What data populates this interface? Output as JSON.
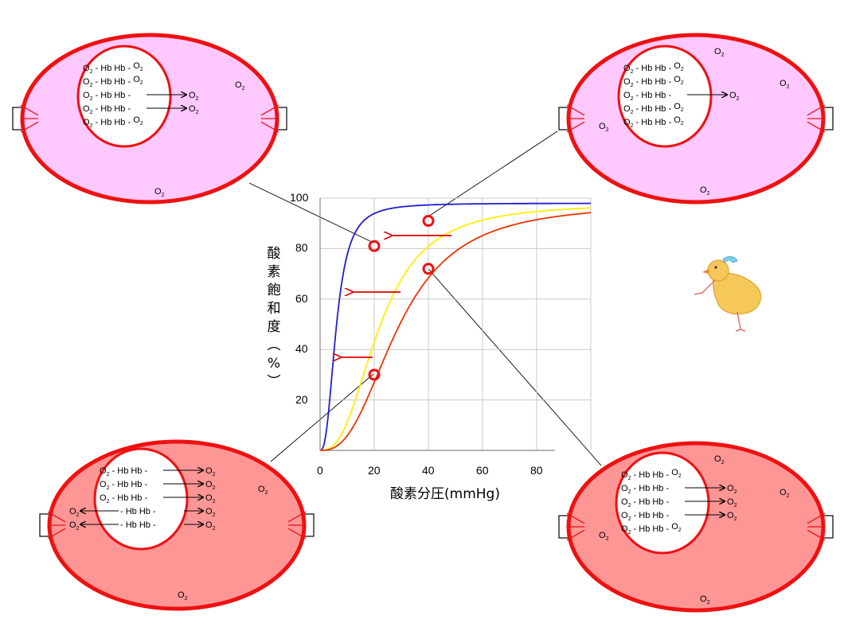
{
  "chart_data": {
    "type": "line",
    "xlabel": "酸素分圧(mmHg)",
    "ylabel": "酸素飽和度(%)",
    "xlim": [
      0,
      100
    ],
    "ylim": [
      0,
      100
    ],
    "x_ticks": [
      "0",
      "20",
      "40",
      "60",
      "80"
    ],
    "y_ticks": [
      "20",
      "40",
      "60",
      "80",
      "100"
    ],
    "grid": true,
    "series": [
      {
        "color": "#1f1fcf",
        "p50": 6,
        "hill": 2.6
      },
      {
        "color": "#ffee00",
        "p50": 22,
        "hill": 2.6
      },
      {
        "color": "#ee3300",
        "p50": 29,
        "hill": 2.6
      }
    ],
    "markers": [
      {
        "x": 20,
        "y": 81
      },
      {
        "x": 40,
        "y": 91
      },
      {
        "x": 20,
        "y": 30
      },
      {
        "x": 40,
        "y": 72
      }
    ],
    "shift_arrows": 3
  },
  "cells": [
    {
      "id": "top-left",
      "fill": "#ffc8ff",
      "rows": [
        "O2 - Hb Hb - O2",
        "O2 - Hb Hb - O2",
        "O2 - Hb Hb -",
        "O2 - Hb Hb -",
        "O2 - Hb Hb - O2"
      ],
      "released": [
        "O2",
        "O2"
      ],
      "free_o2": [
        "O2",
        "O2"
      ]
    },
    {
      "id": "top-right",
      "fill": "#ffc8ff",
      "rows": [
        "O2 - Hb Hb - O2",
        "O2 - Hb Hb - O2",
        "O2 - Hb Hb -",
        "O2 - Hb Hb - O2",
        "O2 - Hb Hb - O2"
      ],
      "released": [
        "O2"
      ],
      "free_o2": [
        "O2",
        "O2",
        "O2",
        "O2"
      ]
    },
    {
      "id": "bottom-left",
      "fill": "#ff9696",
      "rows": [
        "O2 - Hb Hb -",
        "O2 - Hb Hb -",
        "O2 - Hb Hb -",
        "- Hb Hb -",
        "- Hb Hb -"
      ],
      "released": [
        "O2",
        "O2",
        "O2",
        "O2",
        "O2"
      ],
      "left_released": [
        "O2",
        "O2"
      ],
      "free_o2": [
        "O2",
        "O2"
      ]
    },
    {
      "id": "bottom-right",
      "fill": "#ff9696",
      "rows": [
        "O2 - Hb Hb - O2",
        "O2 - Hb Hb -",
        "O2 - Hb Hb -",
        "O2 - Hb Hb -",
        "O2 - Hb Hb - O2"
      ],
      "released": [
        "O2",
        "O2",
        "O2"
      ],
      "free_o2": [
        "O2",
        "O2",
        "O2",
        "O2"
      ]
    }
  ],
  "colors": {
    "membrane": "#ee1111",
    "arrow": "#dd0000",
    "grid": "#c8c8c8"
  }
}
